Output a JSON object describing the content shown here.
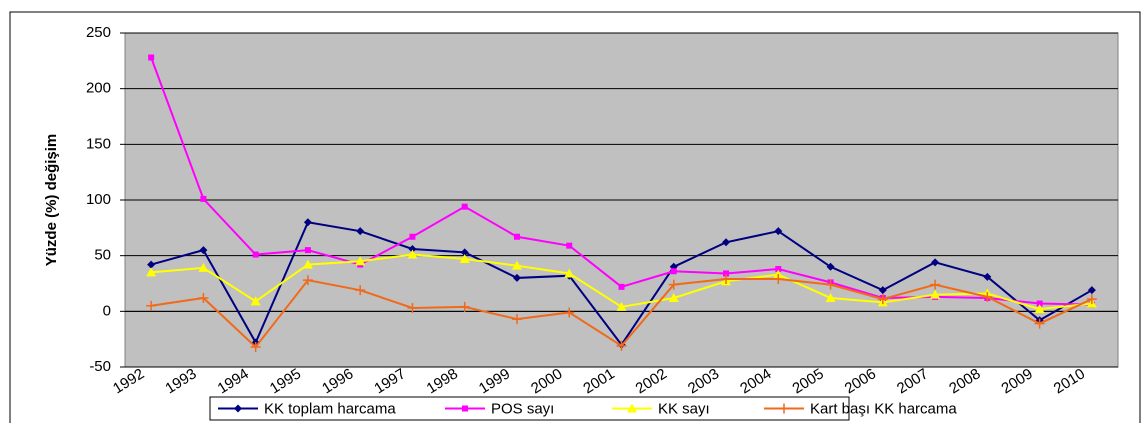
{
  "chart_data": {
    "type": "line",
    "y_label": "Yüzde (%) değişim",
    "categories": [
      "1992",
      "1993",
      "1994",
      "1995",
      "1996",
      "1997",
      "1998",
      "1999",
      "2000",
      "2001",
      "2002",
      "2003",
      "2004",
      "2005",
      "2006",
      "2007",
      "2008",
      "2009",
      "2010"
    ],
    "series": [
      {
        "name": "KK toplam harcama",
        "color": "#000080",
        "marker": "diamond",
        "values": [
          42,
          55,
          -28,
          80,
          72,
          56,
          53,
          30,
          32,
          -30,
          40,
          62,
          72,
          40,
          19,
          44,
          31,
          -8,
          19
        ]
      },
      {
        "name": "POS sayı",
        "color": "#ff00ff",
        "marker": "square",
        "values": [
          228,
          101,
          51,
          55,
          42,
          67,
          94,
          67,
          59,
          22,
          36,
          34,
          38,
          26,
          12,
          13,
          12,
          7,
          6
        ]
      },
      {
        "name": "KK sayı",
        "color": "#ffff00",
        "marker": "triangle",
        "values": [
          35,
          39,
          9,
          42,
          45,
          51,
          47,
          41,
          34,
          4,
          12,
          27,
          33,
          12,
          8,
          15,
          16,
          2,
          7
        ]
      },
      {
        "name": "Kart başı KK harcama",
        "color": "#f06a1a",
        "marker": "plus",
        "values": [
          5,
          12,
          -32,
          28,
          19,
          3,
          4,
          -7,
          -1,
          -31,
          24,
          29,
          29,
          24,
          11,
          24,
          13,
          -11,
          11
        ]
      }
    ],
    "ylim": [
      -50,
      250
    ],
    "yticks": [
      -50,
      0,
      50,
      100,
      150,
      200,
      250
    ],
    "grid": true,
    "legend": "bottom"
  }
}
